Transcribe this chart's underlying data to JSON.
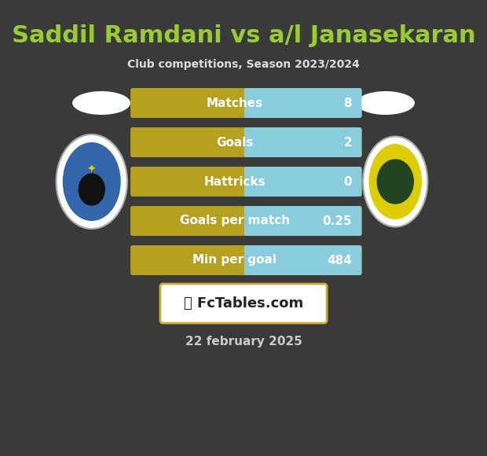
{
  "title": "Saddil Ramdani vs a/l Janasekaran",
  "subtitle": "Club competitions, Season 2023/2024",
  "date_label": "22 february 2025",
  "watermark": "FcTables.com",
  "background_color": "#3a3a3a",
  "bar_gold_color": "#b5a020",
  "bar_blue_color": "#88ccdd",
  "title_color": "#99cc33",
  "subtitle_color": "#dddddd",
  "date_color": "#cccccc",
  "stats": [
    {
      "label": "Matches",
      "value": "8"
    },
    {
      "label": "Goals",
      "value": "2"
    },
    {
      "label": "Hattricks",
      "value": "0"
    },
    {
      "label": "Goals per match",
      "value": "0.25"
    },
    {
      "label": "Min per goal",
      "value": "484"
    }
  ],
  "figsize": [
    6.2,
    5.8
  ],
  "dpi": 100
}
